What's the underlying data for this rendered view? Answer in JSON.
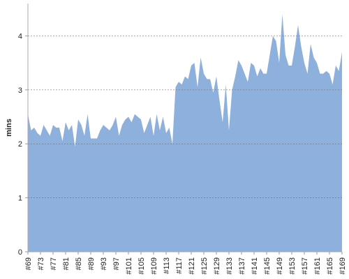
{
  "chart_data": {
    "type": "area",
    "y_label": "mins",
    "categories": [
      "#69",
      null,
      null,
      null,
      "#73",
      null,
      null,
      null,
      "#77",
      null,
      null,
      null,
      "#81",
      null,
      null,
      null,
      "#85",
      null,
      null,
      null,
      "#89",
      null,
      null,
      null,
      "#93",
      null,
      null,
      null,
      "#97",
      null,
      null,
      null,
      "#101",
      null,
      null,
      null,
      "#105",
      null,
      null,
      null,
      "#109",
      null,
      null,
      null,
      "#113",
      null,
      null,
      null,
      "#117",
      null,
      null,
      null,
      "#121",
      null,
      null,
      null,
      "#125",
      null,
      null,
      null,
      "#129",
      null,
      null,
      null,
      "#133",
      null,
      null,
      null,
      "#137",
      null,
      null,
      null,
      "#141",
      null,
      null,
      null,
      "#145",
      null,
      null,
      null,
      "#149",
      null,
      null,
      null,
      "#153",
      null,
      null,
      null,
      "#157",
      null,
      null,
      null,
      "#161",
      null,
      null,
      null,
      "#165",
      null,
      null,
      null,
      "#169"
    ],
    "values": [
      2.55,
      2.25,
      2.3,
      2.2,
      2.15,
      2.35,
      2.25,
      2.15,
      2.35,
      2.3,
      2.3,
      2.05,
      2.4,
      2.25,
      2.35,
      1.95,
      2.45,
      2.35,
      2.15,
      2.55,
      2.1,
      2.1,
      2.1,
      2.25,
      2.35,
      2.3,
      2.25,
      2.35,
      2.5,
      2.15,
      2.35,
      2.45,
      2.5,
      2.4,
      2.55,
      2.5,
      2.45,
      2.2,
      2.35,
      2.5,
      2.15,
      2.55,
      2.25,
      2.5,
      2.2,
      2.3,
      2.0,
      3.05,
      3.15,
      3.1,
      3.25,
      3.2,
      3.45,
      3.5,
      3.05,
      3.6,
      3.3,
      3.2,
      3.2,
      2.95,
      3.25,
      2.8,
      2.4,
      3.1,
      2.25,
      3.0,
      3.25,
      3.55,
      3.45,
      3.3,
      3.15,
      3.5,
      3.45,
      3.25,
      3.4,
      3.3,
      3.3,
      3.65,
      4.0,
      3.9,
      3.5,
      4.4,
      3.65,
      3.45,
      3.45,
      3.8,
      4.2,
      3.8,
      3.5,
      3.3,
      3.85,
      3.6,
      3.5,
      3.3,
      3.3,
      3.35,
      3.3,
      3.1,
      3.45,
      3.35,
      3.7
    ],
    "color": "#8eb0dc",
    "ylim": [
      0,
      4.6
    ],
    "yticks": [
      0,
      1,
      2,
      3,
      4
    ],
    "grid": true
  }
}
